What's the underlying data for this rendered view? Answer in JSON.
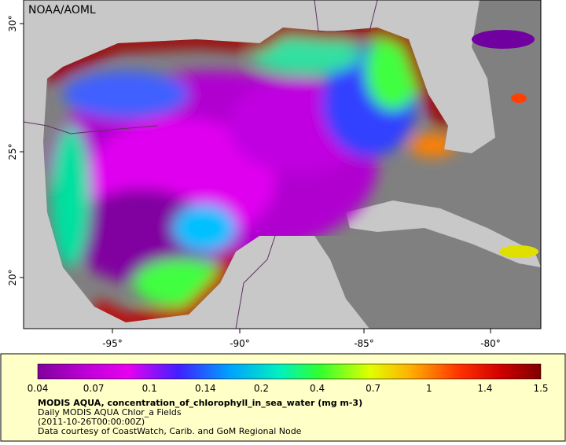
{
  "map": {
    "credit": "NOAA/AOML",
    "lat_ticks": [
      "30°",
      "25°",
      "20°"
    ],
    "lon_ticks": [
      "-95°",
      "-90°",
      "-85°",
      "-80°"
    ]
  },
  "colorbar": {
    "ticks": [
      0.04,
      0.07,
      0.1,
      0.14,
      0.2,
      0.4,
      0.7,
      1,
      1.4,
      1.5
    ],
    "title": "MODIS AQUA, concentration_of_chlorophyll_in_sea_water (mg m-3)",
    "lines": [
      "Daily MODIS AQUA Chlor_a Fields",
      "(2011-10-26T00:00:00Z)",
      "Data courtesy of CoastWatch, Carib. and GoM Regional Node"
    ]
  }
}
